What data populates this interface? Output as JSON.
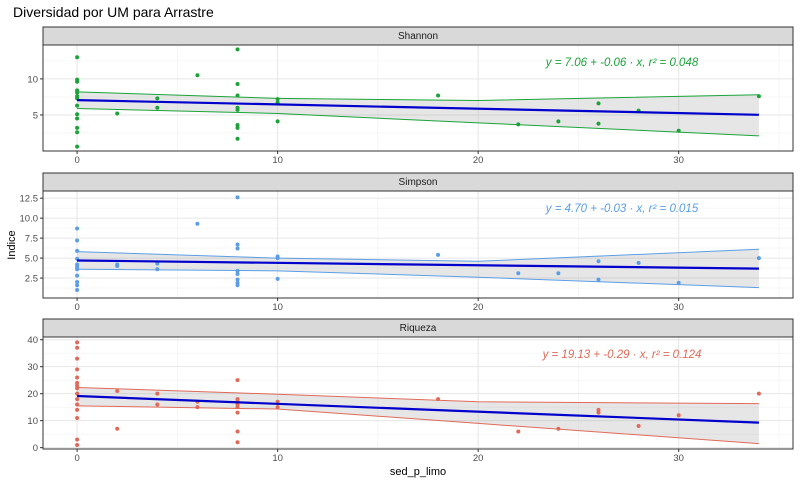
{
  "title": "Diversidad por UM para Arrastre",
  "xlabel": "sed_p_limo",
  "ylabel": "Indice",
  "chart_data": {
    "type": "scatter",
    "xlim": [
      -1.7,
      35.7
    ],
    "xticks": [
      0,
      10,
      20,
      30
    ],
    "panels": [
      {
        "name": "Shannon",
        "color": "#1ba339",
        "ylim": [
          0,
          14.7
        ],
        "yticks": [
          5,
          10
        ],
        "equation": "y = 7.06 + -0.06 · x,  r² = 0.048",
        "fit": {
          "intercept": 7.06,
          "slope": -0.06,
          "lower": [
            [
              0,
              5.9
            ],
            [
              10,
              5.2
            ],
            [
              20,
              3.9
            ],
            [
              34,
              2.1
            ]
          ],
          "upper": [
            [
              0,
              8.2
            ],
            [
              10,
              7.3
            ],
            [
              20,
              7.0
            ],
            [
              34,
              7.8
            ]
          ]
        },
        "points": [
          [
            0,
            13.0
          ],
          [
            0,
            9.9
          ],
          [
            0,
            9.6
          ],
          [
            0,
            8.4
          ],
          [
            0,
            8.1
          ],
          [
            0,
            7.6
          ],
          [
            0,
            7.3
          ],
          [
            0,
            6.3
          ],
          [
            0,
            5.1
          ],
          [
            0,
            4.5
          ],
          [
            0,
            3.2
          ],
          [
            0,
            2.6
          ],
          [
            0,
            0.6
          ],
          [
            2,
            5.2
          ],
          [
            4,
            7.3
          ],
          [
            4,
            6.0
          ],
          [
            6,
            10.5
          ],
          [
            8,
            14.1
          ],
          [
            8,
            9.3
          ],
          [
            8,
            7.7
          ],
          [
            8,
            6.0
          ],
          [
            8,
            5.7
          ],
          [
            8,
            3.6
          ],
          [
            8,
            3.2
          ],
          [
            8,
            1.7
          ],
          [
            10,
            7.2
          ],
          [
            10,
            6.7
          ],
          [
            10,
            4.1
          ],
          [
            18,
            7.7
          ],
          [
            22,
            3.7
          ],
          [
            24,
            4.1
          ],
          [
            26,
            6.6
          ],
          [
            26,
            3.8
          ],
          [
            28,
            5.6
          ],
          [
            30,
            2.8
          ],
          [
            34,
            7.6
          ]
        ]
      },
      {
        "name": "Simpson",
        "color": "#5b9ee6",
        "ylim": [
          0,
          13.4
        ],
        "yticks": [
          2.5,
          5.0,
          7.5,
          10.0,
          12.5
        ],
        "equation": "y = 4.70 + -0.03 · x,  r² = 0.015",
        "fit": {
          "intercept": 4.7,
          "slope": -0.03,
          "lower": [
            [
              0,
              3.6
            ],
            [
              10,
              3.4
            ],
            [
              20,
              2.6
            ],
            [
              34,
              1.3
            ]
          ],
          "upper": [
            [
              0,
              5.8
            ],
            [
              10,
              5.0
            ],
            [
              20,
              4.6
            ],
            [
              34,
              6.1
            ]
          ]
        },
        "points": [
          [
            0,
            8.7
          ],
          [
            0,
            7.2
          ],
          [
            0,
            5.9
          ],
          [
            0,
            4.9
          ],
          [
            0,
            4.2
          ],
          [
            0,
            3.9
          ],
          [
            0,
            3.6
          ],
          [
            0,
            2.8
          ],
          [
            0,
            2.0
          ],
          [
            0,
            1.6
          ],
          [
            0,
            1.0
          ],
          [
            2,
            4.2
          ],
          [
            2,
            4.0
          ],
          [
            4,
            4.3
          ],
          [
            4,
            3.6
          ],
          [
            6,
            9.3
          ],
          [
            8,
            12.6
          ],
          [
            8,
            6.7
          ],
          [
            8,
            6.2
          ],
          [
            8,
            3.4
          ],
          [
            8,
            3.0
          ],
          [
            8,
            2.3
          ],
          [
            8,
            1.9
          ],
          [
            8,
            1.6
          ],
          [
            10,
            5.2
          ],
          [
            10,
            5.0
          ],
          [
            10,
            2.4
          ],
          [
            18,
            5.4
          ],
          [
            22,
            3.1
          ],
          [
            24,
            3.1
          ],
          [
            26,
            4.6
          ],
          [
            26,
            2.3
          ],
          [
            28,
            4.4
          ],
          [
            30,
            1.9
          ],
          [
            34,
            5.0
          ]
        ]
      },
      {
        "name": "Riqueza",
        "color": "#e06a5a",
        "ylim": [
          -0.5,
          41
        ],
        "yticks": [
          0,
          10,
          20,
          30,
          40
        ],
        "equation": "y = 19.13 + -0.29 · x,  r² = 0.124",
        "fit": {
          "intercept": 19.13,
          "slope": -0.29,
          "lower": [
            [
              0,
              15.5
            ],
            [
              10,
              14.3
            ],
            [
              20,
              9.0
            ],
            [
              34,
              1.5
            ]
          ],
          "upper": [
            [
              0,
              22.3
            ],
            [
              10,
              19.8
            ],
            [
              20,
              17.0
            ],
            [
              34,
              16.3
            ]
          ]
        },
        "points": [
          [
            0,
            39
          ],
          [
            0,
            37
          ],
          [
            0,
            33
          ],
          [
            0,
            29
          ],
          [
            0,
            26
          ],
          [
            0,
            24
          ],
          [
            0,
            23
          ],
          [
            0,
            22
          ],
          [
            0,
            20
          ],
          [
            0,
            18
          ],
          [
            0,
            16
          ],
          [
            0,
            14
          ],
          [
            0,
            11
          ],
          [
            0,
            3
          ],
          [
            0,
            1
          ],
          [
            2,
            21
          ],
          [
            2,
            7
          ],
          [
            4,
            20
          ],
          [
            4,
            16
          ],
          [
            6,
            17
          ],
          [
            6,
            15
          ],
          [
            8,
            25
          ],
          [
            8,
            18
          ],
          [
            8,
            17
          ],
          [
            8,
            16
          ],
          [
            8,
            15
          ],
          [
            8,
            13
          ],
          [
            8,
            6
          ],
          [
            8,
            2
          ],
          [
            10,
            17
          ],
          [
            10,
            15
          ],
          [
            18,
            18
          ],
          [
            22,
            6
          ],
          [
            24,
            7
          ],
          [
            26,
            14
          ],
          [
            26,
            13
          ],
          [
            28,
            8
          ],
          [
            30,
            12
          ],
          [
            34,
            20
          ]
        ]
      }
    ]
  }
}
